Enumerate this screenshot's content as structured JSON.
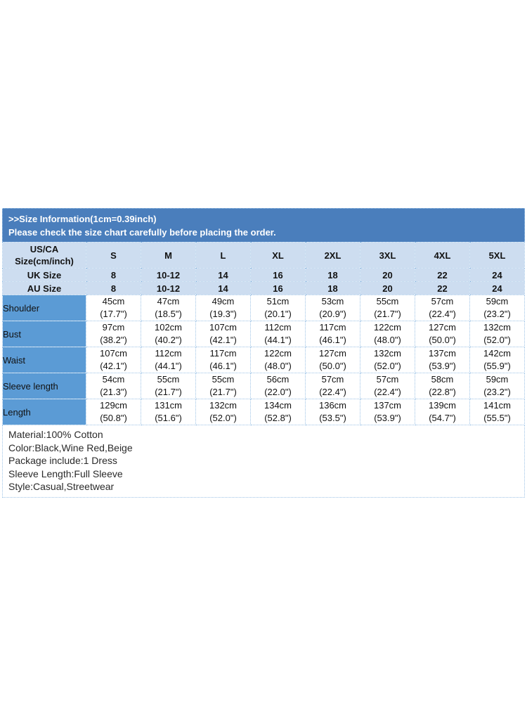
{
  "banner": {
    "line1": ">>Size Information(1cm=0.39inch)",
    "line2": "Please check the size chart carefully before placing the order.",
    "bg_color": "#4a7ebc",
    "text_color": "#ffffff"
  },
  "table": {
    "corner_label": "US/CA Size(cm/inch)",
    "size_columns": [
      "S",
      "M",
      "L",
      "XL",
      "2XL",
      "3XL",
      "4XL",
      "5XL"
    ],
    "size_rows": [
      {
        "label": "UK Size",
        "values": [
          "8",
          "10-12",
          "14",
          "16",
          "18",
          "20",
          "22",
          "24"
        ]
      },
      {
        "label": "AU Size",
        "values": [
          "8",
          "10-12",
          "14",
          "16",
          "18",
          "20",
          "22",
          "24"
        ]
      }
    ],
    "measurement_rows": [
      {
        "label": "Shoulder",
        "cm": [
          "45cm",
          "47cm",
          "49cm",
          "51cm",
          "53cm",
          "55cm",
          "57cm",
          "59cm"
        ],
        "inch": [
          "(17.7\")",
          "(18.5\")",
          "(19.3\")",
          "(20.1\")",
          "(20.9\")",
          "(21.7\")",
          "(22.4\")",
          "(23.2\")"
        ]
      },
      {
        "label": "Bust",
        "cm": [
          "97cm",
          "102cm",
          "107cm",
          "112cm",
          "117cm",
          "122cm",
          "127cm",
          "132cm"
        ],
        "inch": [
          "(38.2\")",
          "(40.2\")",
          "(42.1\")",
          "(44.1\")",
          "(46.1\")",
          "(48.0\")",
          "(50.0\")",
          "(52.0\")"
        ]
      },
      {
        "label": "Waist",
        "cm": [
          "107cm",
          "112cm",
          "117cm",
          "122cm",
          "127cm",
          "132cm",
          "137cm",
          "142cm"
        ],
        "inch": [
          "(42.1\")",
          "(44.1\")",
          "(46.1\")",
          "(48.0\")",
          "(50.0\")",
          "(52.0\")",
          "(53.9\")",
          "(55.9\")"
        ]
      },
      {
        "label": "Sleeve length",
        "cm": [
          "54cm",
          "55cm",
          "55cm",
          "56cm",
          "57cm",
          "57cm",
          "58cm",
          "59cm"
        ],
        "inch": [
          "(21.3\")",
          "(21.7\")",
          "(21.7\")",
          "(22.0\")",
          "(22.4\")",
          "(22.4\")",
          "(22.8\")",
          "(23.2\")"
        ]
      },
      {
        "label": "Length",
        "cm": [
          "129cm",
          "131cm",
          "132cm",
          "134cm",
          "136cm",
          "137cm",
          "139cm",
          "141cm"
        ],
        "inch": [
          "(50.8\")",
          "(51.6\")",
          "(52.0\")",
          "(52.8\")",
          "(53.5\")",
          "(53.9\")",
          "(54.7\")",
          "(55.5\")"
        ]
      }
    ],
    "colors": {
      "header_bg": "#cdddf0",
      "label_bg": "#5b9bd5",
      "border": "#9dc3e6"
    }
  },
  "details": {
    "lines": [
      "Material:100% Cotton",
      "Color:Black,Wine Red,Beige",
      "Package include:1 Dress",
      "Sleeve Length:Full Sleeve",
      "Style:Casual,Streetwear"
    ]
  }
}
